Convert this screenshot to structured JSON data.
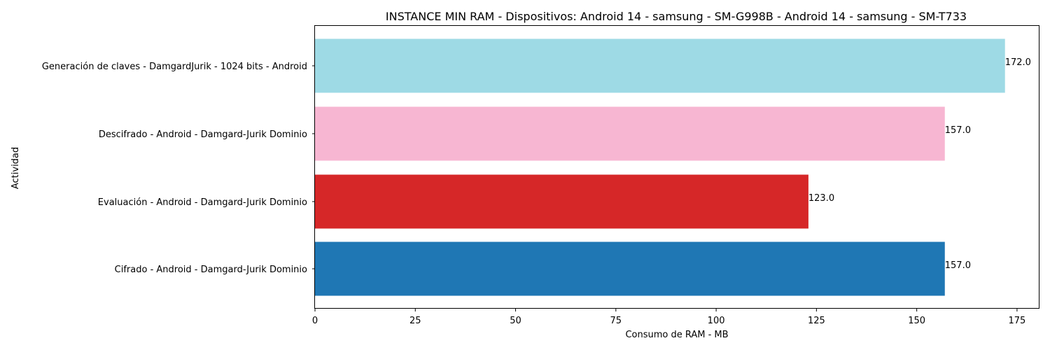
{
  "chart_data": {
    "type": "bar",
    "orientation": "horizontal",
    "title": "INSTANCE MIN RAM - Dispositivos: Android 14 - samsung - SM-G998B - Android 14 - samsung - SM-T733",
    "xlabel": "Consumo de RAM - MB",
    "ylabel": "Actividad",
    "xlim": [
      0,
      180.6
    ],
    "xticks": [
      0,
      25,
      50,
      75,
      100,
      125,
      150,
      175
    ],
    "grid": false,
    "categories": [
      "Cifrado - Android - Damgard-Jurik Dominio",
      "Evaluación - Android - Damgard-Jurik Dominio",
      "Descifrado - Android - Damgard-Jurik Dominio",
      "Generación de claves - DamgardJurik - 1024 bits - Android"
    ],
    "values": [
      157.0,
      123.0,
      157.0,
      172.0
    ],
    "value_labels": [
      "157.0",
      "123.0",
      "157.0",
      "172.0"
    ],
    "colors": [
      "#1f77b4",
      "#d62728",
      "#f7b6d2",
      "#9edae5"
    ]
  }
}
